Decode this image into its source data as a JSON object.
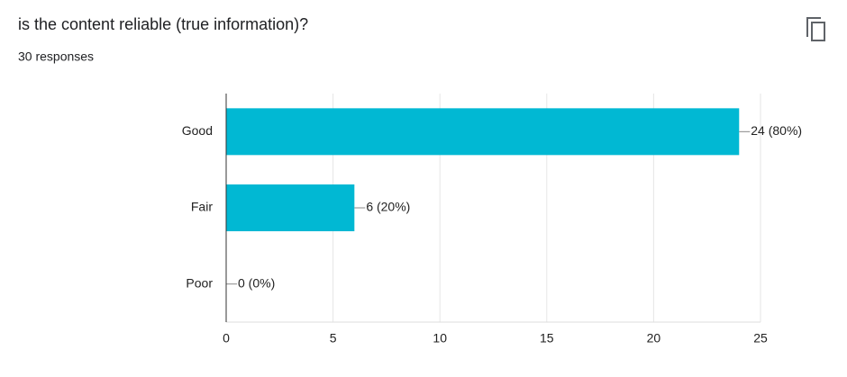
{
  "chart_data": {
    "type": "bar",
    "orientation": "horizontal",
    "title": "is the content reliable (true information)?",
    "subtitle": "30 responses",
    "categories": [
      "Good",
      "Fair",
      "Poor"
    ],
    "values": [
      24,
      6,
      0
    ],
    "value_labels": [
      "24 (80%)",
      "6 (20%)",
      "0 (0%)"
    ],
    "color": "#01b8d3",
    "xlim": [
      0,
      25
    ],
    "xticks": [
      0,
      5,
      10,
      15,
      20,
      25
    ],
    "grid": true
  }
}
